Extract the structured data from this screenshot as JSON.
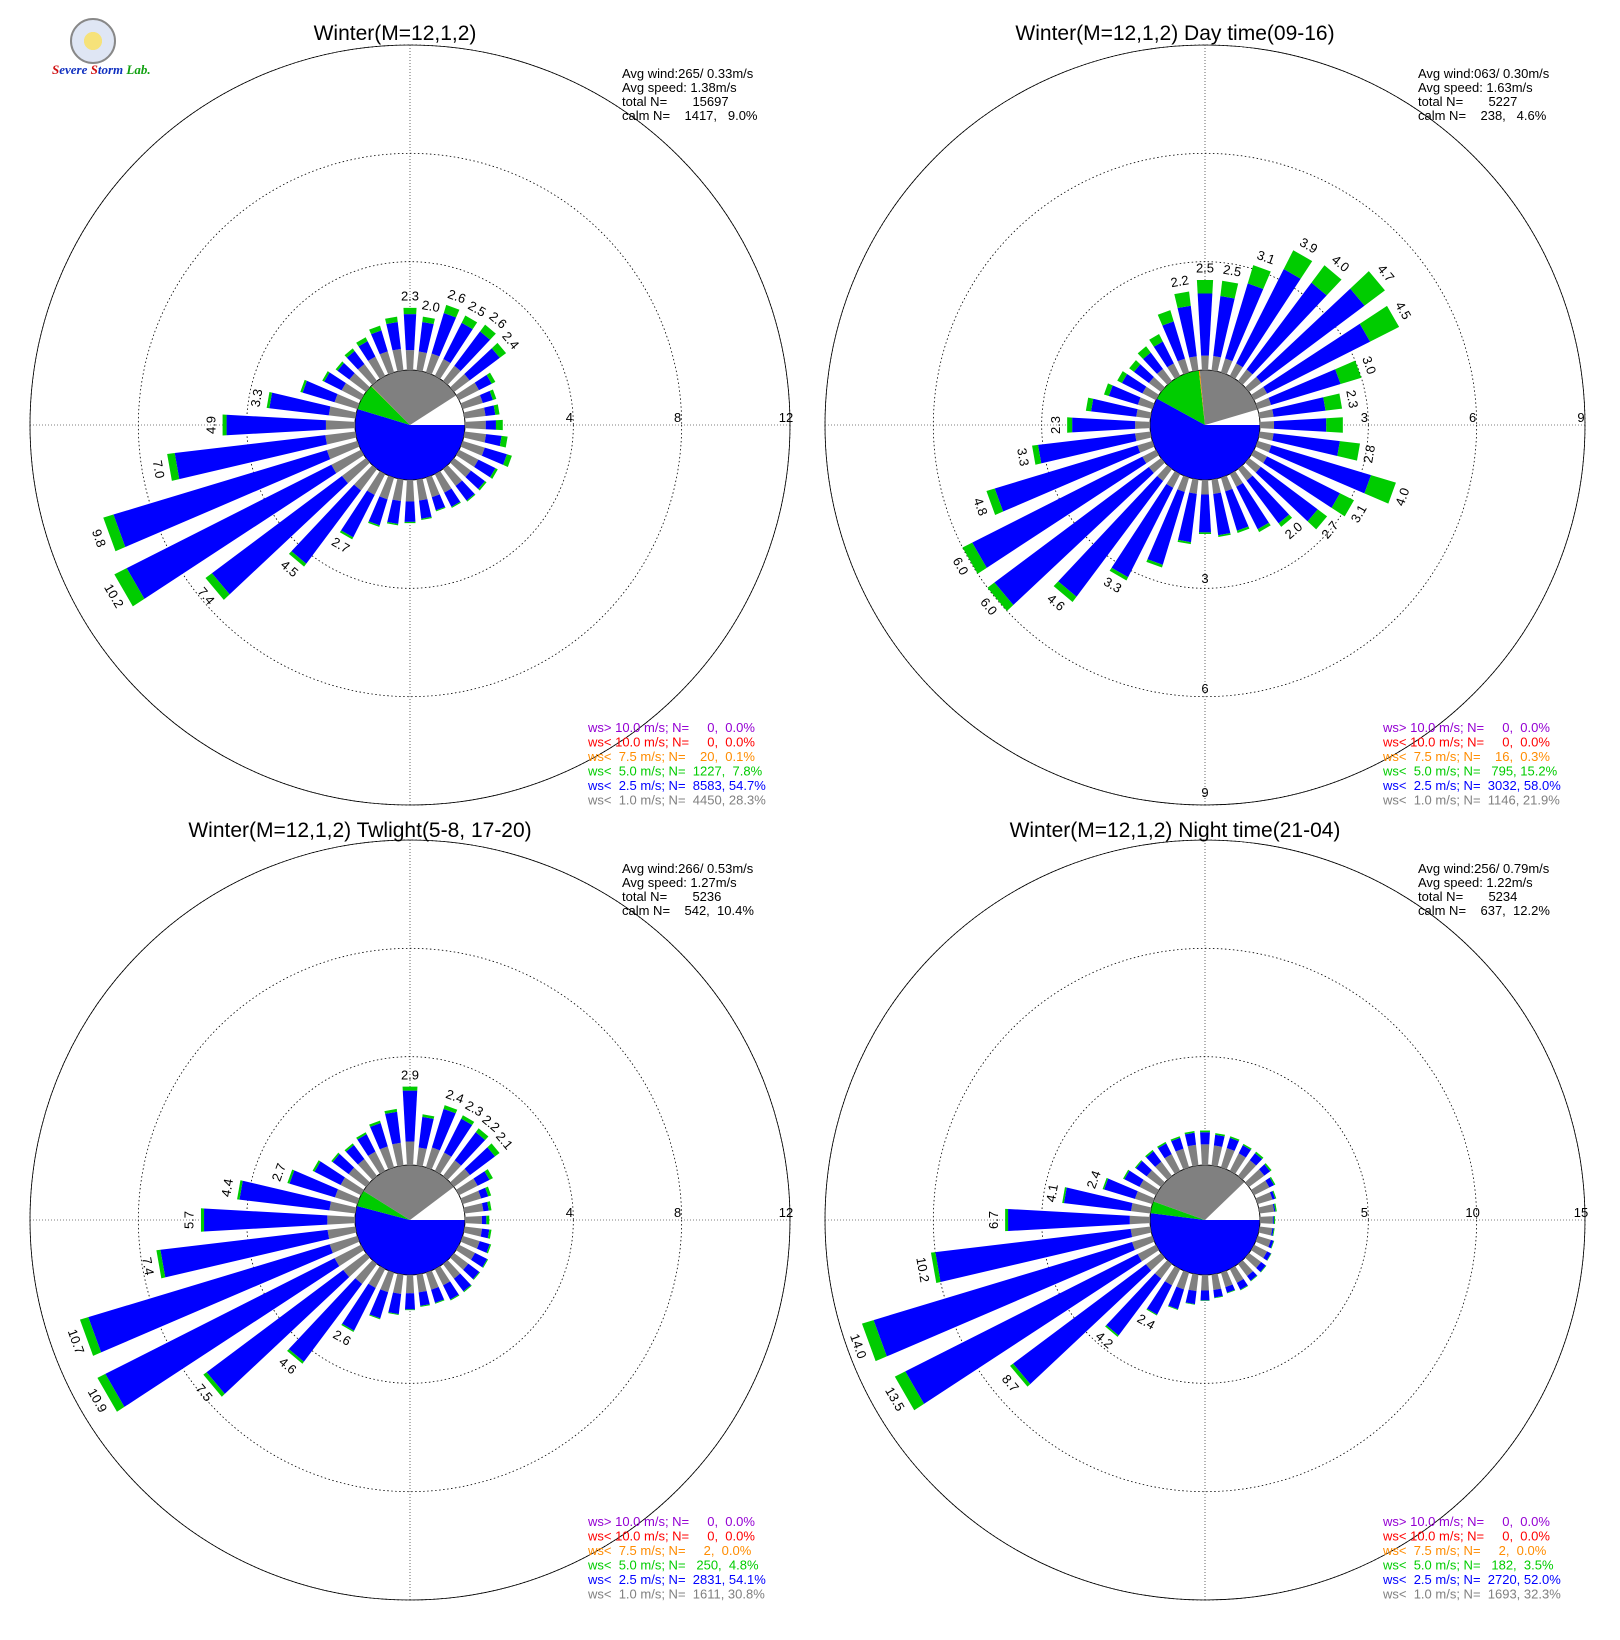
{
  "brand": {
    "logo_text": "Severe Storm Lab."
  },
  "colors": {
    "calm_sector": "#808080",
    "lt1": "#808080",
    "lt2_5": "#0000ff",
    "lt5": "#00cc00",
    "lt7_5": "#ff8c00",
    "lt10": "#ff0000",
    "gt10": "#9400d3"
  },
  "directions_deg": [
    0,
    10,
    20,
    30,
    40,
    50,
    60,
    70,
    80,
    90,
    100,
    110,
    120,
    130,
    140,
    150,
    160,
    170,
    180,
    190,
    200,
    210,
    220,
    230,
    240,
    250,
    260,
    270,
    280,
    290,
    300,
    310,
    320,
    330,
    340,
    350
  ],
  "chart_data": [
    {
      "type": "wind-rose",
      "title": "Winter(M=12,1,2)",
      "rmax": 12,
      "rings": [
        "4",
        "8",
        "12"
      ],
      "stats": [
        "Avg wind:265/ 0.33m/s",
        "Avg speed: 1.38m/s",
        "total N=       15697",
        "calm N=    1417,   9.0%"
      ],
      "calm_sectors": {
        "lt1": 28.3,
        "lt2_5": 54.7,
        "lt5": 7.8,
        "lt7_5": 0.1
      },
      "totals": [
        2.3,
        2.0,
        2.6,
        2.5,
        2.6,
        2.4,
        1.5,
        1.3,
        1.3,
        1.4,
        1.6,
        1.9,
        1.6,
        1.5,
        1.5,
        1.4,
        1.3,
        1.5,
        1.6,
        1.7,
        1.9,
        2.7,
        4.5,
        7.4,
        10.2,
        9.8,
        7.0,
        4.9,
        3.3,
        2.2,
        1.6,
        1.4,
        1.5,
        1.6,
        1.8,
        2.0
      ],
      "frac_lt1": [
        0.32,
        0.35,
        0.28,
        0.28,
        0.27,
        0.3,
        0.55,
        0.6,
        0.6,
        0.55,
        0.5,
        0.45,
        0.5,
        0.52,
        0.52,
        0.55,
        0.58,
        0.52,
        0.5,
        0.47,
        0.44,
        0.32,
        0.22,
        0.15,
        0.12,
        0.12,
        0.16,
        0.22,
        0.3,
        0.4,
        0.5,
        0.55,
        0.52,
        0.5,
        0.45,
        0.4
      ],
      "frac_lt5": [
        0.1,
        0.1,
        0.12,
        0.12,
        0.12,
        0.12,
        0.1,
        0.1,
        0.12,
        0.18,
        0.14,
        0.1,
        0.06,
        0.05,
        0.03,
        0.03,
        0.03,
        0.03,
        0.03,
        0.03,
        0.03,
        0.03,
        0.03,
        0.04,
        0.05,
        0.04,
        0.04,
        0.03,
        0.03,
        0.04,
        0.05,
        0.06,
        0.08,
        0.1,
        0.1,
        0.1
      ],
      "labels": [
        "2.3",
        "2.0",
        "2.6",
        "2.5",
        "2.6",
        "2.4",
        "",
        "",
        "",
        "",
        "",
        "",
        "",
        "",
        "",
        "",
        "",
        "",
        "",
        "",
        "",
        "2.7",
        "4.5",
        "7.4",
        "10.2",
        "9.8",
        "7.0",
        "4.9",
        "3.3",
        "",
        "",
        "",
        "",
        "",
        "",
        ""
      ],
      "legend": [
        {
          "key": "gt10",
          "text": "ws> 10.0 m/s; N=     0,  0.0%"
        },
        {
          "key": "lt10",
          "text": "ws< 10.0 m/s; N=     0,  0.0%"
        },
        {
          "key": "lt7_5",
          "text": "ws<  7.5 m/s; N=    20,  0.1%"
        },
        {
          "key": "lt5",
          "text": "ws<  5.0 m/s; N=  1227,  7.8%"
        },
        {
          "key": "lt2_5",
          "text": "ws<  2.5 m/s; N=  8583, 54.7%"
        },
        {
          "key": "lt1",
          "text": "ws<  1.0 m/s; N=  4450, 28.3%"
        }
      ]
    },
    {
      "type": "wind-rose",
      "title": "Winter(M=12,1,2) Day time(09-16)",
      "rmax": 9,
      "rings": [
        "3",
        "6",
        "9"
      ],
      "stats": [
        "Avg wind:063/ 0.30m/s",
        "Avg speed: 1.63m/s",
        "total N=       5227",
        "calm N=    238,   4.6%"
      ],
      "calm_sectors": {
        "lt1": 21.9,
        "lt2_5": 58.0,
        "lt5": 15.2,
        "lt7_5": 0.3
      },
      "totals": [
        2.5,
        2.5,
        3.1,
        3.9,
        4.0,
        4.7,
        4.5,
        3.0,
        2.3,
        2.3,
        2.8,
        4.0,
        3.1,
        2.7,
        2.0,
        1.8,
        1.6,
        1.6,
        1.5,
        1.8,
        2.6,
        3.3,
        4.6,
        6.0,
        6.0,
        4.8,
        3.3,
        2.3,
        1.8,
        1.4,
        1.2,
        1.1,
        1.2,
        1.3,
        1.8,
        2.2
      ],
      "frac_lt1": [
        0.16,
        0.16,
        0.13,
        0.1,
        0.1,
        0.09,
        0.09,
        0.13,
        0.17,
        0.17,
        0.14,
        0.1,
        0.13,
        0.15,
        0.2,
        0.22,
        0.25,
        0.25,
        0.27,
        0.22,
        0.16,
        0.13,
        0.09,
        0.07,
        0.07,
        0.09,
        0.13,
        0.18,
        0.22,
        0.3,
        0.35,
        0.38,
        0.35,
        0.3,
        0.22,
        0.18
      ],
      "frac_lt5": [
        0.15,
        0.17,
        0.17,
        0.15,
        0.15,
        0.15,
        0.2,
        0.2,
        0.2,
        0.2,
        0.2,
        0.18,
        0.14,
        0.12,
        0.06,
        0.05,
        0.04,
        0.03,
        0.03,
        0.03,
        0.03,
        0.03,
        0.04,
        0.04,
        0.05,
        0.05,
        0.05,
        0.06,
        0.08,
        0.1,
        0.12,
        0.15,
        0.18,
        0.18,
        0.18,
        0.18
      ],
      "labels": [
        "2.5",
        "2.5",
        "3.1",
        "3.9",
        "4.0",
        "4.7",
        "4.5",
        "3.0",
        "2.3",
        "",
        "2.8",
        "4.0",
        "3.1",
        "2.7",
        "2.0",
        "",
        "",
        "",
        "",
        "",
        "",
        "3.3",
        "4.6",
        "6.0",
        "6.0",
        "4.8",
        "3.3",
        "2.3",
        "",
        "",
        "",
        "",
        "",
        "",
        "",
        "2.2"
      ],
      "extra_labels": [
        {
          "r": 5.9,
          "deg": 180,
          "text": "3"
        },
        {
          "r": 8.8,
          "deg": 180,
          "text": "6"
        },
        {
          "r": 11.7,
          "deg": 180,
          "text": "9"
        }
      ],
      "legend": [
        {
          "key": "gt10",
          "text": "ws> 10.0 m/s; N=     0,  0.0%"
        },
        {
          "key": "lt10",
          "text": "ws< 10.0 m/s; N=     0,  0.0%"
        },
        {
          "key": "lt7_5",
          "text": "ws<  7.5 m/s; N=    16,  0.3%"
        },
        {
          "key": "lt5",
          "text": "ws<  5.0 m/s; N=   795, 15.2%"
        },
        {
          "key": "lt2_5",
          "text": "ws<  2.5 m/s; N=  3032, 58.0%"
        },
        {
          "key": "lt1",
          "text": "ws<  1.0 m/s; N=  1146, 21.9%"
        }
      ]
    },
    {
      "type": "wind-rose",
      "title": "Winter(M=12,1,2) Twlight(5-8, 17-20)",
      "rmax": 12,
      "rings": [
        "4",
        "8",
        "12"
      ],
      "stats": [
        "Avg wind:266/ 0.53m/s",
        "Avg speed: 1.27m/s",
        "total N=       5236",
        "calm N=    542,  10.4%"
      ],
      "calm_sectors": {
        "lt1": 30.8,
        "lt2_5": 54.1,
        "lt5": 4.8,
        "lt7_5": 0.0
      },
      "totals": [
        2.9,
        1.9,
        2.4,
        2.3,
        2.2,
        2.1,
        1.4,
        1.1,
        1.0,
        0.9,
        1.0,
        1.1,
        1.2,
        1.2,
        1.3,
        1.3,
        1.2,
        1.2,
        1.3,
        1.5,
        1.8,
        2.6,
        4.6,
        7.5,
        10.9,
        10.7,
        7.4,
        5.7,
        4.4,
        2.7,
        2.0,
        1.6,
        1.5,
        1.6,
        1.8,
        2.1
      ],
      "frac_lt1": [
        0.3,
        0.35,
        0.32,
        0.33,
        0.33,
        0.35,
        0.55,
        0.65,
        0.7,
        0.7,
        0.65,
        0.6,
        0.55,
        0.55,
        0.52,
        0.52,
        0.55,
        0.55,
        0.52,
        0.48,
        0.42,
        0.3,
        0.2,
        0.14,
        0.1,
        0.1,
        0.14,
        0.18,
        0.22,
        0.32,
        0.42,
        0.5,
        0.52,
        0.5,
        0.45,
        0.4
      ],
      "frac_lt5": [
        0.05,
        0.05,
        0.06,
        0.06,
        0.08,
        0.1,
        0.1,
        0.1,
        0.1,
        0.12,
        0.08,
        0.05,
        0.03,
        0.03,
        0.03,
        0.03,
        0.03,
        0.03,
        0.02,
        0.02,
        0.02,
        0.02,
        0.02,
        0.02,
        0.03,
        0.03,
        0.02,
        0.02,
        0.02,
        0.03,
        0.04,
        0.04,
        0.05,
        0.05,
        0.05,
        0.05
      ],
      "labels": [
        "2.9",
        "",
        "2.4",
        "2.3",
        "2.2",
        "2.1",
        "",
        "",
        "",
        "",
        "",
        "",
        "",
        "",
        "",
        "",
        "",
        "",
        "",
        "",
        "",
        "2.6",
        "4.6",
        "7.5",
        "10.9",
        "10.7",
        "7.4",
        "5.7",
        "4.4",
        "2.7",
        "",
        "",
        "",
        "",
        "",
        ""
      ],
      "legend": [
        {
          "key": "gt10",
          "text": "ws> 10.0 m/s; N=     0,  0.0%"
        },
        {
          "key": "lt10",
          "text": "ws< 10.0 m/s; N=     0,  0.0%"
        },
        {
          "key": "lt7_5",
          "text": "ws<  7.5 m/s; N=     2,  0.0%"
        },
        {
          "key": "lt5",
          "text": "ws<  5.0 m/s; N=   250,  4.8%"
        },
        {
          "key": "lt2_5",
          "text": "ws<  2.5 m/s; N=  2831, 54.1%"
        },
        {
          "key": "lt1",
          "text": "ws<  1.0 m/s; N=  1611, 30.8%"
        }
      ]
    },
    {
      "type": "wind-rose",
      "title": "Winter(M=12,1,2) Night time(21-04)",
      "rmax": 15,
      "rings": [
        "5",
        "10",
        "15"
      ],
      "stats": [
        "Avg wind:256/ 0.79m/s",
        "Avg speed: 1.22m/s",
        "total N=       5234",
        "calm N=    637,  12.2%"
      ],
      "calm_sectors": {
        "lt1": 32.3,
        "lt2_5": 52.0,
        "lt5": 3.5,
        "lt7_5": 0.0
      },
      "totals": [
        1.6,
        1.5,
        1.5,
        1.4,
        1.4,
        1.3,
        1.1,
        0.9,
        0.8,
        0.7,
        0.7,
        0.8,
        0.9,
        1.0,
        1.0,
        1.1,
        1.0,
        1.1,
        1.2,
        1.4,
        1.8,
        2.4,
        4.2,
        8.7,
        13.5,
        14.0,
        10.2,
        6.7,
        4.1,
        2.4,
        1.7,
        1.5,
        1.5,
        1.5,
        1.5,
        1.6
      ],
      "frac_lt1": [
        0.6,
        0.62,
        0.62,
        0.65,
        0.65,
        0.68,
        0.72,
        0.8,
        0.85,
        0.85,
        0.85,
        0.8,
        0.75,
        0.7,
        0.7,
        0.65,
        0.7,
        0.65,
        0.6,
        0.55,
        0.45,
        0.35,
        0.2,
        0.1,
        0.07,
        0.07,
        0.09,
        0.14,
        0.22,
        0.35,
        0.5,
        0.55,
        0.55,
        0.58,
        0.6,
        0.6
      ],
      "frac_lt5": [
        0.05,
        0.05,
        0.05,
        0.05,
        0.06,
        0.06,
        0.06,
        0.06,
        0.08,
        0.08,
        0.06,
        0.04,
        0.03,
        0.03,
        0.03,
        0.03,
        0.03,
        0.03,
        0.02,
        0.02,
        0.02,
        0.02,
        0.02,
        0.02,
        0.04,
        0.04,
        0.02,
        0.02,
        0.02,
        0.03,
        0.04,
        0.04,
        0.05,
        0.05,
        0.05,
        0.05
      ],
      "labels": [
        "",
        "",
        "",
        "",
        "",
        "",
        "",
        "",
        "",
        "",
        "",
        "",
        "",
        "",
        "",
        "",
        "",
        "",
        "",
        "",
        "",
        "2.4",
        "4.2",
        "8.7",
        "13.5",
        "14.0",
        "10.2",
        "6.7",
        "4.1",
        "2.4",
        "",
        "",
        "",
        "",
        "",
        ""
      ],
      "legend": [
        {
          "key": "gt10",
          "text": "ws> 10.0 m/s; N=     0,  0.0%"
        },
        {
          "key": "lt10",
          "text": "ws< 10.0 m/s; N=     0,  0.0%"
        },
        {
          "key": "lt7_5",
          "text": "ws<  7.5 m/s; N=     2,  0.0%"
        },
        {
          "key": "lt5",
          "text": "ws<  5.0 m/s; N=   182,  3.5%"
        },
        {
          "key": "lt2_5",
          "text": "ws<  2.5 m/s; N=  2720, 52.0%"
        },
        {
          "key": "lt1",
          "text": "ws<  1.0 m/s; N=  1693, 32.3%"
        }
      ]
    }
  ]
}
